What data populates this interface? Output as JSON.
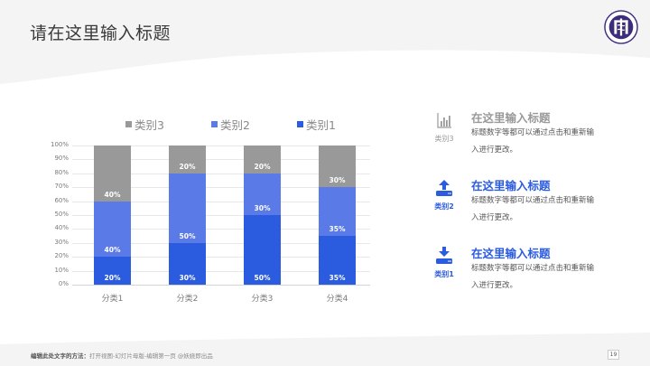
{
  "header": {
    "title": "请在这里输入标题"
  },
  "legend": [
    {
      "label": "类别3",
      "color": "#999999"
    },
    {
      "label": "类别2",
      "color": "#5a7ae8"
    },
    {
      "label": "类别1",
      "color": "#2b5ce0"
    }
  ],
  "chart_data": {
    "type": "bar",
    "stacked": true,
    "percent": true,
    "title": "",
    "xlabel": "",
    "ylabel": "",
    "categories": [
      "分类1",
      "分类2",
      "分类3",
      "分类4"
    ],
    "series": [
      {
        "name": "类别1",
        "color": "#2b5ce0",
        "values": [
          20,
          30,
          50,
          35
        ],
        "labels": [
          "20%",
          "30%",
          "50%",
          "35%"
        ]
      },
      {
        "name": "类别2",
        "color": "#5a7ae8",
        "values": [
          40,
          50,
          30,
          35
        ],
        "labels": [
          "40%",
          "50%",
          "30%",
          "35%"
        ]
      },
      {
        "name": "类别3",
        "color": "#999999",
        "values": [
          40,
          20,
          20,
          30
        ],
        "labels": [
          "40%",
          "20%",
          "20%",
          "30%"
        ]
      }
    ],
    "yticks": [
      "0%",
      "10%",
      "20%",
      "30%",
      "40%",
      "50%",
      "60%",
      "70%",
      "80%",
      "90%",
      "100%"
    ],
    "ylim": [
      0,
      100
    ],
    "grid": true,
    "legend_position": "top"
  },
  "info_items": [
    {
      "category": "类别3",
      "icon": "bar-chart-icon",
      "title": "在这里输入标题",
      "text": "标题数字等都可以通过点击和重新输入进行更改。",
      "color": "#999999"
    },
    {
      "category": "类别2",
      "icon": "upload-icon",
      "title": "在这里输入标题",
      "text": "标题数字等都可以通过点击和重新输入进行更改。",
      "color": "#2b5ce0"
    },
    {
      "category": "类别1",
      "icon": "download-icon",
      "title": "在这里输入标题",
      "text": "标题数字等都可以通过点击和重新输入进行更改。",
      "color": "#2b5ce0"
    }
  ],
  "footer": {
    "note_bold": "编辑此处文字的方法：",
    "note": "打开视图-幻灯片母版-编辑第一页 @妖娆即出品",
    "page": "19"
  }
}
